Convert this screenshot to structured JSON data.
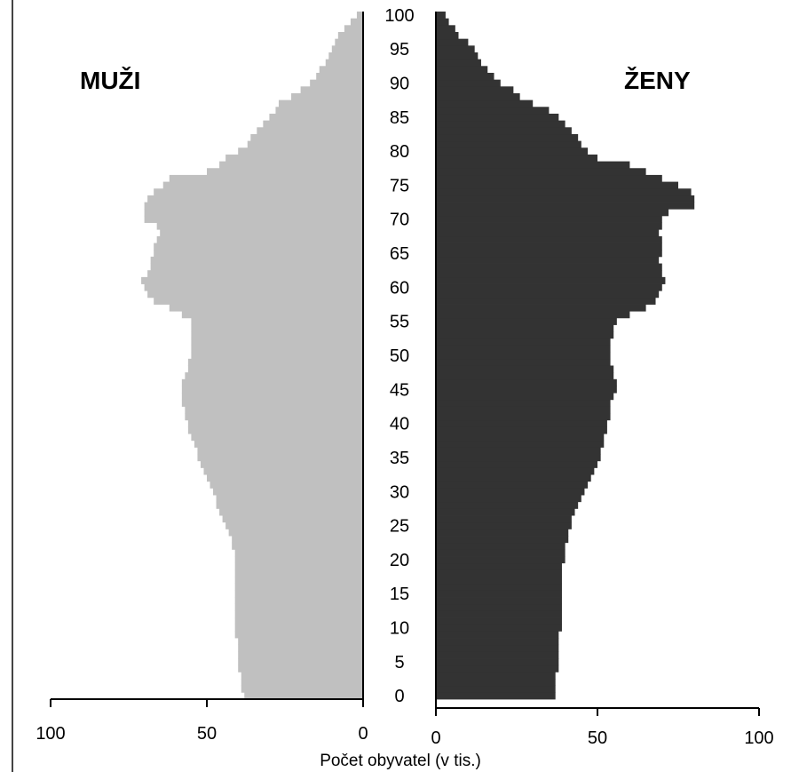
{
  "chart_data": {
    "type": "bar",
    "subtype": "population-pyramid",
    "orientation": "horizontal",
    "panel_labels": {
      "left": "MUŽI",
      "right": "ŽENY"
    },
    "xlabel": "Počet obyvatel (v tis.)",
    "x_ticks_left": [
      "100",
      "50",
      "0"
    ],
    "x_ticks_right": [
      "0",
      "50",
      "100"
    ],
    "xlim": [
      0,
      100
    ],
    "ylim": [
      0,
      100
    ],
    "y_ticks": [
      "0",
      "5",
      "10",
      "15",
      "20",
      "25",
      "30",
      "35",
      "40",
      "45",
      "50",
      "55",
      "60",
      "65",
      "70",
      "75",
      "80",
      "85",
      "90",
      "95",
      "100"
    ],
    "ages": [
      0,
      1,
      2,
      3,
      4,
      5,
      6,
      7,
      8,
      9,
      10,
      11,
      12,
      13,
      14,
      15,
      16,
      17,
      18,
      19,
      20,
      21,
      22,
      23,
      24,
      25,
      26,
      27,
      28,
      29,
      30,
      31,
      32,
      33,
      34,
      35,
      36,
      37,
      38,
      39,
      40,
      41,
      42,
      43,
      44,
      45,
      46,
      47,
      48,
      49,
      50,
      51,
      52,
      53,
      54,
      55,
      56,
      57,
      58,
      59,
      60,
      61,
      62,
      63,
      64,
      65,
      66,
      67,
      68,
      69,
      70,
      71,
      72,
      73,
      74,
      75,
      76,
      77,
      78,
      79,
      80,
      81,
      82,
      83,
      84,
      85,
      86,
      87,
      88,
      89,
      90,
      91,
      92,
      93,
      94,
      95,
      96,
      97,
      98,
      99,
      100
    ],
    "series": [
      {
        "name": "MUŽI",
        "color": "#c0c0c0",
        "values": [
          38,
          39,
          39,
          39,
          40,
          40,
          40,
          40,
          40,
          41,
          41,
          41,
          41,
          41,
          41,
          41,
          41,
          41,
          41,
          41,
          41,
          41,
          42,
          42,
          43,
          44,
          45,
          46,
          47,
          47,
          48,
          49,
          50,
          51,
          52,
          53,
          53,
          54,
          55,
          56,
          56,
          57,
          57,
          58,
          58,
          58,
          58,
          57,
          56,
          56,
          55,
          55,
          55,
          55,
          55,
          55,
          58,
          62,
          67,
          69,
          70,
          71,
          69,
          68,
          68,
          67,
          67,
          66,
          65,
          66,
          70,
          70,
          70,
          69,
          67,
          64,
          62,
          50,
          46,
          44,
          40,
          37,
          36,
          34,
          32,
          30,
          28,
          27,
          23,
          20,
          17,
          15,
          14,
          12,
          11,
          10,
          9,
          8,
          6,
          4,
          2
        ]
      },
      {
        "name": "ŽENY",
        "color": "#333333",
        "values": [
          37,
          37,
          37,
          37,
          38,
          38,
          38,
          38,
          38,
          38,
          39,
          39,
          39,
          39,
          39,
          39,
          39,
          39,
          39,
          39,
          40,
          40,
          40,
          41,
          41,
          42,
          42,
          43,
          44,
          45,
          46,
          47,
          48,
          49,
          50,
          51,
          51,
          52,
          52,
          53,
          53,
          54,
          54,
          54,
          55,
          56,
          56,
          55,
          55,
          54,
          54,
          54,
          54,
          55,
          55,
          56,
          60,
          65,
          68,
          69,
          70,
          71,
          70,
          70,
          69,
          70,
          70,
          70,
          69,
          70,
          70,
          72,
          80,
          80,
          79,
          75,
          70,
          65,
          60,
          50,
          47,
          45,
          44,
          42,
          40,
          38,
          35,
          30,
          26,
          24,
          20,
          18,
          16,
          14,
          13,
          12,
          10,
          7,
          6,
          4,
          3
        ]
      }
    ]
  }
}
